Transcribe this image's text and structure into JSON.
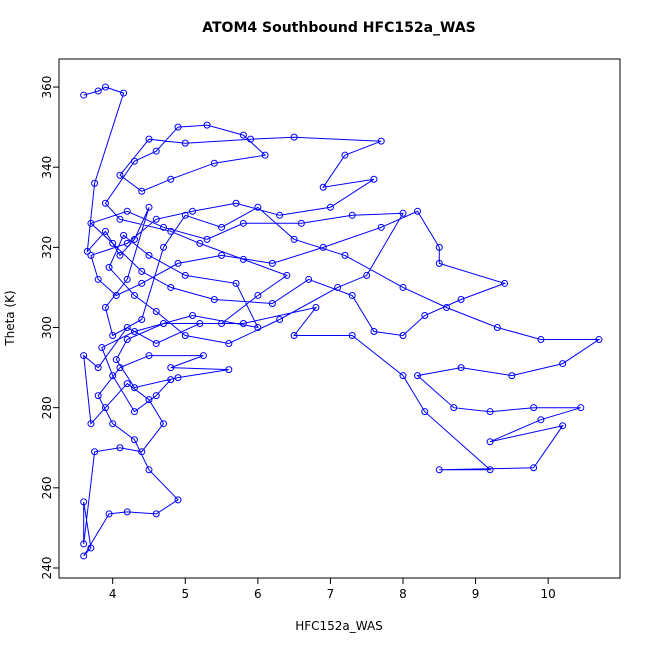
{
  "chart_data": {
    "type": "line",
    "title": "ATOM4 Southbound HFC152a_WAS",
    "x_label": "HFC152a_WAS",
    "y_label": "Theta (K)",
    "x": [
      3.6,
      3.8,
      3.9,
      4.15,
      3.75,
      3.65,
      3.9,
      4.1,
      4.3,
      4.5,
      4.2,
      3.9,
      4.0,
      4.4,
      4.7,
      5.0,
      5.5,
      6.0,
      6.5,
      7.2,
      8.0,
      8.6,
      9.3,
      9.9,
      10.7,
      10.2,
      9.5,
      8.8,
      8.2,
      8.7,
      9.2,
      9.8,
      10.45,
      9.9,
      9.2,
      10.2,
      9.8,
      8.5,
      9.2,
      8.3,
      8.0,
      7.3,
      6.5,
      6.8,
      5.8,
      5.2,
      4.6,
      4.2,
      3.8,
      3.6,
      3.7,
      3.9,
      4.2,
      4.5,
      4.7,
      4.4,
      4.1,
      3.75,
      3.6,
      3.6,
      3.7,
      3.6,
      3.95,
      4.2,
      4.6,
      4.9,
      4.5,
      4.3,
      4.0,
      3.8,
      4.1,
      4.5,
      5.25,
      4.8,
      5.6,
      4.9,
      4.3,
      4.05,
      4.2,
      4.7,
      5.5,
      6.0,
      6.4,
      5.8,
      5.2,
      4.8,
      4.1,
      3.9,
      4.3,
      4.6,
      4.9,
      5.3,
      5.8,
      6.1,
      5.4,
      4.8,
      4.4,
      4.1,
      4.5,
      5.0,
      5.9,
      6.5,
      7.7,
      7.2,
      6.9,
      7.6,
      7.0,
      6.3,
      5.7,
      5.1,
      4.6,
      4.2,
      3.7,
      3.8,
      4.05,
      4.4,
      4.9,
      5.5,
      6.2,
      6.9,
      7.7,
      8.2,
      8.5,
      8.5,
      9.4,
      8.8,
      8.3,
      8.0,
      7.6,
      7.3,
      6.7,
      6.2,
      5.4,
      4.8,
      4.4,
      4.0,
      3.7,
      4.2,
      4.7,
      5.3,
      5.8,
      6.6,
      7.3,
      8.0,
      7.5,
      7.1,
      6.3,
      5.6,
      5.0,
      4.6,
      4.3,
      3.95,
      4.15,
      4.5,
      5.0,
      5.7,
      6.0,
      5.1,
      4.3,
      3.85,
      4.0,
      4.3,
      4.6,
      4.8
    ],
    "series": [
      {
        "color": "#0000ff",
        "values": [
          358,
          359,
          360,
          358.5,
          336,
          319,
          324,
          318,
          322,
          330,
          312,
          305,
          298,
          302,
          320,
          328,
          325,
          330,
          322,
          318,
          310,
          305,
          300,
          297,
          297,
          291,
          288,
          290,
          288,
          280,
          279,
          280,
          280,
          277,
          271.5,
          275.5,
          265,
          264.5,
          264.5,
          279,
          288,
          298,
          298,
          305,
          301,
          301,
          296,
          300,
          290,
          293,
          276,
          280,
          286,
          282,
          276,
          269,
          270,
          269,
          246,
          256.5,
          245,
          243,
          253.5,
          254,
          253.5,
          257,
          264.5,
          272,
          276,
          283,
          290,
          293,
          293,
          290,
          289.5,
          287.5,
          285,
          292,
          297,
          301,
          301,
          308,
          313,
          317,
          321,
          324,
          327,
          331,
          341.5,
          344,
          350,
          350.5,
          348,
          343,
          341,
          337,
          334,
          338,
          347,
          346,
          347,
          347.5,
          346.5,
          343,
          335,
          337,
          330,
          328,
          331,
          329,
          327,
          321,
          318,
          312,
          308,
          311,
          316,
          318,
          316,
          320,
          325,
          329,
          320,
          316,
          311,
          307,
          303,
          298,
          299,
          308,
          312,
          306,
          307,
          310,
          314,
          321,
          326,
          329,
          325,
          322,
          326,
          326,
          328,
          328.5,
          313,
          310,
          302,
          296,
          298,
          304,
          308,
          315,
          323,
          318,
          313,
          311,
          300,
          303,
          299,
          295,
          288,
          279,
          283,
          287
        ]
      }
    ],
    "xlim": [
      3.26,
      10.99
    ],
    "ylim": [
      237.5,
      367
    ],
    "xticks": [
      4,
      5,
      6,
      7,
      8,
      9,
      10
    ],
    "yticks": [
      240,
      260,
      280,
      300,
      320,
      340,
      360
    ]
  }
}
